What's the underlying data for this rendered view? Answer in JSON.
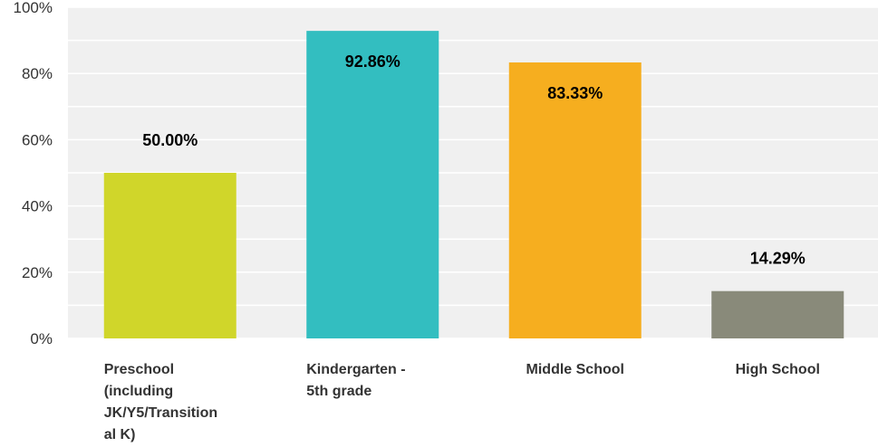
{
  "chart_data": {
    "type": "bar",
    "categories": [
      [
        "Preschool",
        "(including",
        "JK/Y5/Transition",
        "al K)"
      ],
      [
        "Kindergarten -",
        "5th grade"
      ],
      [
        "Middle School"
      ],
      [
        "High School"
      ]
    ],
    "values": [
      50.0,
      92.86,
      83.33,
      14.29
    ],
    "value_labels": [
      "50.00%",
      "92.86%",
      "83.33%",
      "14.29%"
    ],
    "colors": [
      "#d0d62a",
      "#33bec0",
      "#f6ae1f",
      "#898a7a"
    ],
    "ylim": [
      0,
      100
    ],
    "yticks": [
      0,
      20,
      40,
      60,
      80,
      100
    ],
    "ytick_labels": [
      "0%",
      "20%",
      "40%",
      "60%",
      "80%",
      "100%"
    ],
    "grid": true,
    "plot_background": "#f0f0f0",
    "grid_color": "#ffffff"
  }
}
